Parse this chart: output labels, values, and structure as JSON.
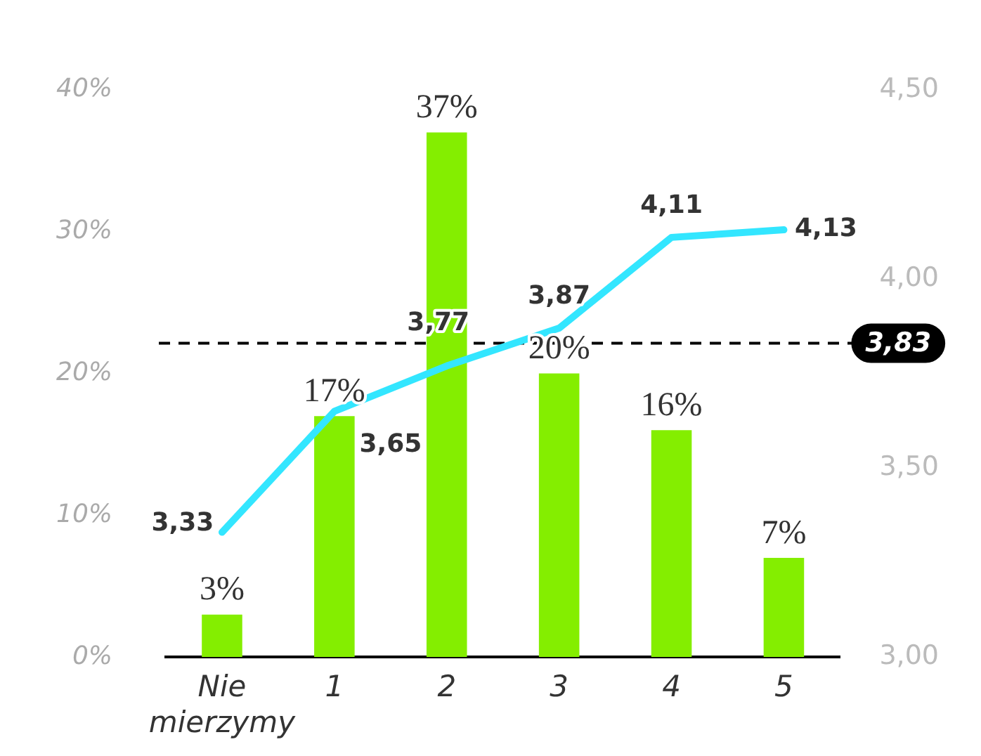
{
  "chart_data": {
    "type": "bar",
    "categories": [
      "Nie mierzymy",
      "1",
      "2",
      "3",
      "4",
      "5"
    ],
    "series": [
      {
        "color": "#84ee00",
        "values": [
          3,
          17,
          37,
          20,
          16,
          7
        ],
        "value_labels": [
          "3%",
          "17%",
          "37%",
          "20%",
          "16%",
          "7%"
        ]
      },
      {
        "type": "line",
        "axis": "y2",
        "color": "#33e6ff",
        "values": [
          3.33,
          3.65,
          3.77,
          3.87,
          4.11,
          4.13
        ],
        "value_labels": [
          "3,33",
          "3,65",
          "3,77",
          "3,87",
          "4,11",
          "4,13"
        ]
      }
    ],
    "ylim": [
      0,
      40
    ],
    "yticks": [
      {
        "value": 0,
        "label": "0%"
      },
      {
        "value": 10,
        "label": "10%"
      },
      {
        "value": 20,
        "label": "20%"
      },
      {
        "value": 30,
        "label": "30%"
      },
      {
        "value": 40,
        "label": "40%"
      }
    ],
    "y2lim": [
      3,
      4.5
    ],
    "y2ticks": [
      {
        "value": 3,
        "label": "3,00"
      },
      {
        "value": 3.5,
        "label": "3,50"
      },
      {
        "value": 4,
        "label": "4,00"
      },
      {
        "value": 4.5,
        "label": "4,50"
      }
    ],
    "ref_lines": [
      {
        "axis": "y2",
        "value": 3.83,
        "label": "3,83",
        "color": "#000000",
        "line_style": "dashed"
      }
    ],
    "grid": false,
    "legend": false,
    "marker": "none",
    "line_style": "solid"
  }
}
